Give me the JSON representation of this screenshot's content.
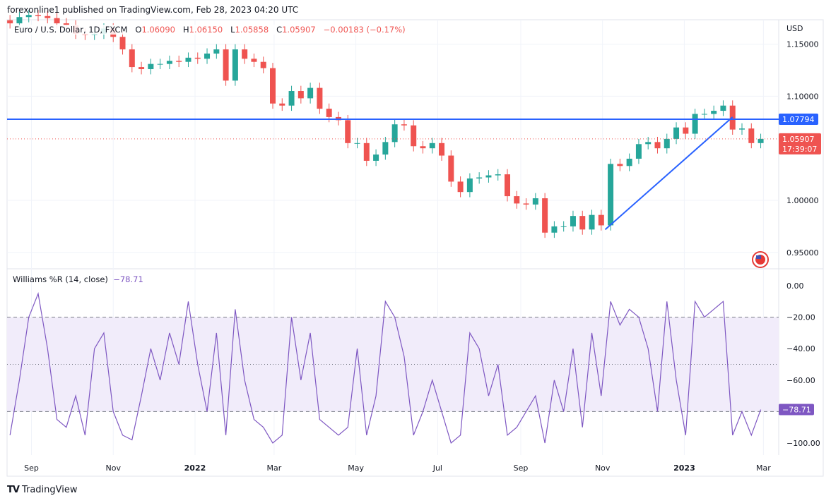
{
  "header": {
    "published": "forexonline1 published on TradingView.com, Feb 28, 2023 04:20 UTC",
    "symbol": "Euro / U.S. Dollar, 1D, FXCM",
    "open_label": "O",
    "open": "1.06090",
    "high_label": "H",
    "high": "1.06150",
    "low_label": "L",
    "low": "1.05858",
    "close_label": "C",
    "close": "1.05907",
    "change": "−0.00183 (−0.17%)"
  },
  "indicator": {
    "name": "Williams %R (14, close)",
    "value": "−78.71"
  },
  "footer": {
    "brand": "TradingView"
  },
  "colors": {
    "up": "#26a69a",
    "down": "#ef5350",
    "line": "#2962ff",
    "wr": "#7e57c2",
    "band": "#f1ecfa"
  },
  "chart_data": [
    {
      "type": "candlestick",
      "currency": "USD",
      "x_start": "2021-08-16",
      "x_step": "1W",
      "close": [
        1.17,
        1.176,
        1.178,
        1.177,
        1.175,
        1.17,
        1.168,
        1.16,
        1.159,
        1.16,
        1.165,
        1.157,
        1.145,
        1.128,
        1.126,
        1.131,
        1.131,
        1.134,
        1.133,
        1.137,
        1.136,
        1.141,
        1.145,
        1.115,
        1.145,
        1.136,
        1.133,
        1.127,
        1.093,
        1.091,
        1.105,
        1.098,
        1.108,
        1.088,
        1.08,
        1.077,
        1.055,
        1.055,
        1.038,
        1.044,
        1.056,
        1.073,
        1.072,
        1.052,
        1.05,
        1.055,
        1.043,
        1.018,
        1.008,
        1.021,
        1.022,
        1.024,
        1.025,
        1.004,
        0.997,
        0.996,
        1.002,
        0.969,
        0.975,
        0.975,
        0.985,
        0.972,
        0.986,
        0.976,
        1.035,
        1.033,
        1.04,
        1.054,
        1.056,
        1.05,
        1.059,
        1.07,
        1.064,
        1.083,
        1.083,
        1.086,
        1.091,
        1.068,
        1.069,
        1.055,
        1.059
      ],
      "y_ticks": [
        "1.15000",
        "1.10000",
        "1.00000",
        "0.95000"
      ],
      "y_range": [
        0.935,
        1.19
      ],
      "horizontal_line": {
        "value": 1.07794,
        "label": "1.07794"
      },
      "trend_line": {
        "from": {
          "date": "2022-11-03",
          "value": 0.972
        },
        "to": {
          "date": "2023-02-06",
          "value": 1.08
        }
      },
      "last_price": {
        "label": "1.05907",
        "countdown": "17:39:07",
        "value": 1.05907
      }
    },
    {
      "type": "line",
      "x_start": "2021-08-16",
      "x_step": "1W",
      "values": [
        -95,
        -60,
        -20,
        -5,
        -40,
        -85,
        -90,
        -70,
        -95,
        -40,
        -30,
        -80,
        -95,
        -98,
        -70,
        -40,
        -60,
        -30,
        -50,
        -10,
        -50,
        -80,
        -30,
        -95,
        -15,
        -60,
        -85,
        -90,
        -100,
        -95,
        -20,
        -60,
        -30,
        -85,
        -90,
        -95,
        -90,
        -40,
        -95,
        -70,
        -10,
        -20,
        -45,
        -95,
        -80,
        -60,
        -80,
        -100,
        -95,
        -30,
        -40,
        -70,
        -50,
        -95,
        -90,
        -80,
        -70,
        -100,
        -60,
        -80,
        -40,
        -90,
        -30,
        -70,
        -10,
        -25,
        -15,
        -20,
        -40,
        -80,
        -10,
        -60,
        -95,
        -10,
        -20,
        -15,
        -10,
        -95,
        -80,
        -95,
        -78.71
      ],
      "y_ticks": [
        "0.00",
        "−20.00",
        "−40.00",
        "−60.00",
        "−100.00"
      ],
      "y_range": [
        -100,
        0
      ],
      "bands": {
        "upper": -20,
        "middle": -50,
        "lower": -80
      },
      "last_label": "−78.71"
    }
  ],
  "x_axis": {
    "ticks": [
      {
        "date": "2021-09-01",
        "label": "Sep",
        "bold": false
      },
      {
        "date": "2021-11-01",
        "label": "Nov",
        "bold": false
      },
      {
        "date": "2022-01-01",
        "label": "2022",
        "bold": true
      },
      {
        "date": "2022-03-01",
        "label": "Mar",
        "bold": false
      },
      {
        "date": "2022-05-01",
        "label": "May",
        "bold": false
      },
      {
        "date": "2022-07-01",
        "label": "Jul",
        "bold": false
      },
      {
        "date": "2022-09-01",
        "label": "Sep",
        "bold": false
      },
      {
        "date": "2022-11-01",
        "label": "Nov",
        "bold": false
      },
      {
        "date": "2023-01-01",
        "label": "2023",
        "bold": true
      },
      {
        "date": "2023-03-01",
        "label": "Mar",
        "bold": false
      }
    ]
  }
}
